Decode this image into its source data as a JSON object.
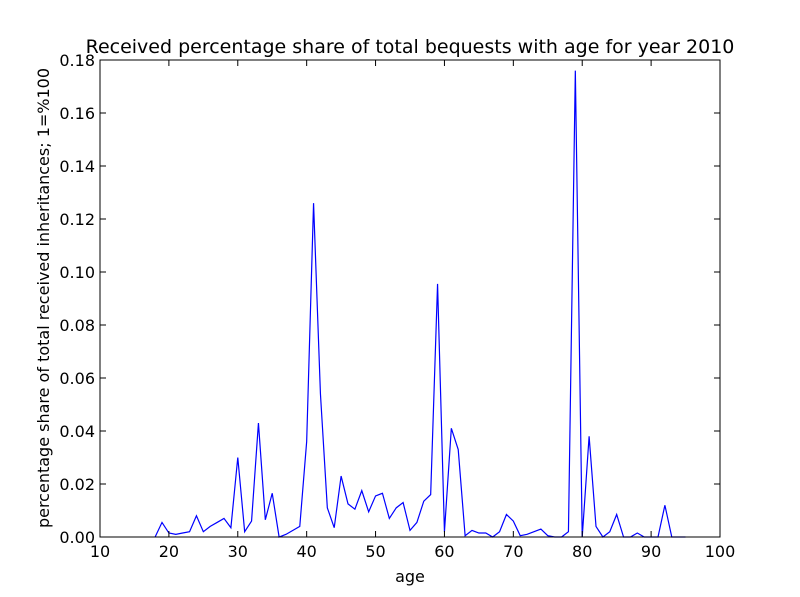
{
  "chart_data": {
    "type": "line",
    "title": "Received percentage share of total bequests with age for year 2010",
    "xlabel": "age",
    "ylabel": "percentage share of total received inheritances; 1=%100",
    "xlim": [
      10,
      100
    ],
    "ylim": [
      0.0,
      0.18
    ],
    "x_ticks": [
      10,
      20,
      30,
      40,
      50,
      60,
      70,
      80,
      90,
      100
    ],
    "x_tick_labels": [
      "10",
      "20",
      "30",
      "40",
      "50",
      "60",
      "70",
      "80",
      "90",
      "100"
    ],
    "y_ticks": [
      0.0,
      0.02,
      0.04,
      0.06,
      0.08,
      0.1,
      0.12,
      0.14,
      0.16,
      0.18
    ],
    "y_tick_labels": [
      "0.00",
      "0.02",
      "0.04",
      "0.06",
      "0.08",
      "0.10",
      "0.12",
      "0.14",
      "0.16",
      "0.18"
    ],
    "grid": false,
    "series": [
      {
        "color": "#0000ff",
        "x": [
          18,
          19,
          20,
          21,
          22,
          23,
          24,
          25,
          26,
          27,
          28,
          29,
          30,
          31,
          32,
          33,
          34,
          35,
          36,
          37,
          38,
          39,
          40,
          41,
          42,
          43,
          44,
          45,
          46,
          47,
          48,
          49,
          50,
          51,
          52,
          53,
          54,
          55,
          56,
          57,
          58,
          59,
          60,
          61,
          62,
          63,
          64,
          65,
          66,
          67,
          68,
          69,
          70,
          71,
          72,
          73,
          74,
          75,
          76,
          77,
          78,
          79,
          80,
          81,
          82,
          83,
          84,
          85,
          86,
          87,
          88,
          89,
          90,
          91,
          92,
          93,
          94,
          95
        ],
        "y": [
          0.0,
          0.0055,
          0.0015,
          0.001,
          0.0015,
          0.002,
          0.008,
          0.002,
          0.004,
          0.0055,
          0.007,
          0.0035,
          0.03,
          0.002,
          0.006,
          0.043,
          0.0065,
          0.0165,
          0.0,
          0.001,
          0.0025,
          0.004,
          0.036,
          0.126,
          0.054,
          0.011,
          0.0035,
          0.023,
          0.0125,
          0.0105,
          0.0175,
          0.0095,
          0.0155,
          0.0165,
          0.007,
          0.011,
          0.013,
          0.0025,
          0.0055,
          0.0135,
          0.016,
          0.0955,
          0.002,
          0.041,
          0.033,
          0.0005,
          0.0025,
          0.0015,
          0.0015,
          0.0,
          0.002,
          0.0085,
          0.006,
          0.0005,
          0.001,
          0.002,
          0.003,
          0.0005,
          0.0,
          0.0,
          0.002,
          0.176,
          0.0,
          0.038,
          0.004,
          0.0,
          0.002,
          0.0085,
          0.0,
          0.0,
          0.0015,
          0.0,
          0.0,
          0.0,
          0.012,
          0.0,
          0.0,
          0.0
        ]
      }
    ]
  }
}
